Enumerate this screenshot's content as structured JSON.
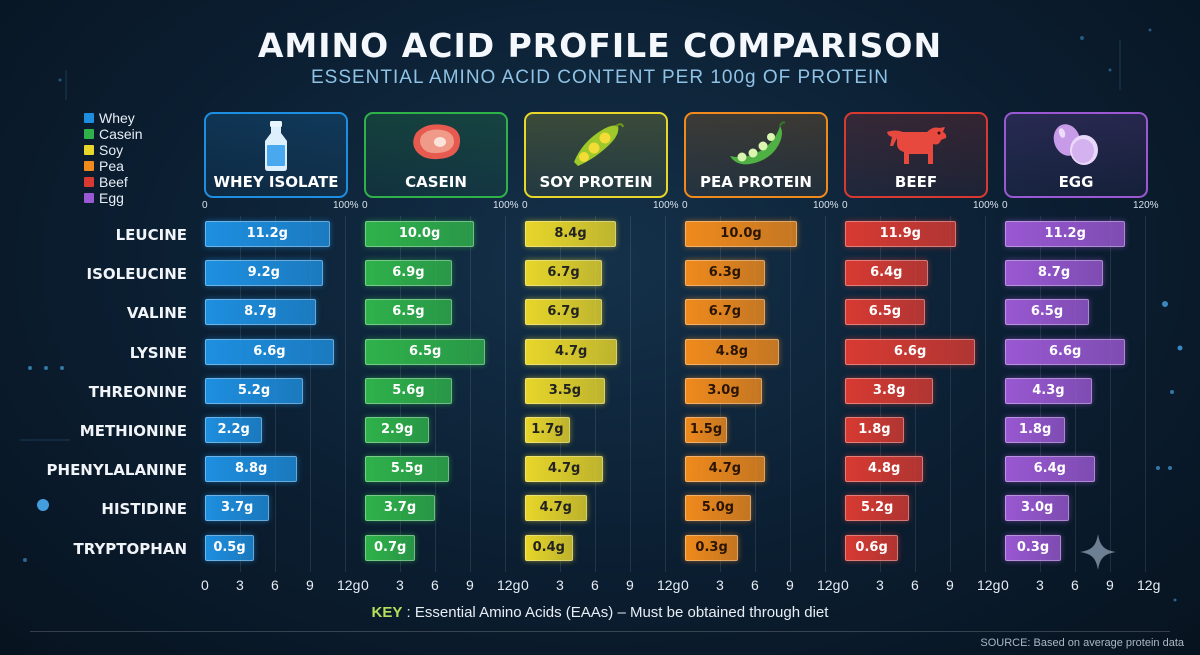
{
  "title": "AMINO ACID PROFILE COMPARISON",
  "subtitle": "ESSENTIAL AMINO ACID CONTENT PER 100g OF PROTEIN",
  "legend": [
    {
      "name": "Whey",
      "color": "#1e8fe0"
    },
    {
      "name": "Casein",
      "color": "#2fb24a"
    },
    {
      "name": "Soy",
      "color": "#e8d62a"
    },
    {
      "name": "Pea",
      "color": "#f08a1c"
    },
    {
      "name": "Beef",
      "color": "#d83a32"
    },
    {
      "name": "Egg",
      "color": "#9a58d2"
    }
  ],
  "key_note": {
    "key": "KEY",
    "text": " : Essential Amino Acids (EAAs) – Must be obtained through diet"
  },
  "source": "SOURCE: Based on average protein data",
  "chart_data": {
    "type": "bar",
    "orientation": "horizontal",
    "categories": [
      "LEUCINE",
      "ISOLEUCINE",
      "VALINE",
      "LYSINE",
      "THREONINE",
      "METHIONINE",
      "PHENYLALANINE",
      "HISTIDINE",
      "TRYPTOPHAN"
    ],
    "x_ticks": [
      "0",
      "3",
      "6",
      "9",
      "12g"
    ],
    "xlim": [
      0,
      12
    ],
    "grid": true,
    "series": [
      {
        "name": "WHEY ISOLATE",
        "icon": "milk-bottle-icon",
        "color": "#1e8fe0",
        "scale_min": "0",
        "scale_max": "100%",
        "values": [
          11.2,
          9.2,
          8.7,
          6.6,
          5.2,
          2.2,
          8.8,
          3.7,
          0.5
        ],
        "labels": [
          "11.2g",
          "9.2g",
          "8.7g",
          "6.6g",
          "5.2g",
          "2.2g",
          "8.8g",
          "3.7g",
          "0.5g"
        ],
        "bar_fraction": [
          0.89,
          0.84,
          0.79,
          0.92,
          0.7,
          0.41,
          0.66,
          0.46,
          0.35
        ]
      },
      {
        "name": "CASEIN",
        "icon": "steak-icon",
        "color": "#2fb24a",
        "scale_min": "0",
        "scale_max": "100%",
        "values": [
          10.0,
          6.9,
          6.5,
          6.5,
          5.6,
          2.9,
          5.5,
          3.7,
          0.7
        ],
        "labels": [
          "10.0g",
          "6.9g",
          "6.5g",
          "6.5g",
          "5.6g",
          "2.9g",
          "5.5g",
          "3.7g",
          "0.7g"
        ],
        "bar_fraction": [
          0.78,
          0.62,
          0.62,
          0.86,
          0.62,
          0.46,
          0.6,
          0.5,
          0.36
        ]
      },
      {
        "name": "SOY PROTEIN",
        "icon": "soybean-icon",
        "color": "#e8d62a",
        "scale_min": "0",
        "scale_max": "100%",
        "values": [
          8.4,
          6.7,
          6.7,
          4.7,
          3.5,
          1.7,
          4.7,
          4.7,
          0.4
        ],
        "labels": [
          "8.4g",
          "6.7g",
          "6.7g",
          "4.7g",
          "3.5g",
          "1.7g",
          "4.7g",
          "4.7g",
          "0.4g"
        ],
        "bar_fraction": [
          0.65,
          0.55,
          0.55,
          0.66,
          0.57,
          0.32,
          0.56,
          0.44,
          0.34
        ]
      },
      {
        "name": "PEA PROTEIN",
        "icon": "pea-pod-icon",
        "color": "#f08a1c",
        "scale_min": "0",
        "scale_max": "100%",
        "values": [
          10.0,
          6.3,
          6.7,
          4.8,
          3.0,
          1.5,
          4.7,
          5.0,
          0.3
        ],
        "labels": [
          "10.0g",
          "6.3g",
          "6.7g",
          "4.8g",
          "3.0g",
          "1.5g",
          "4.7g",
          "5.0g",
          "0.3g"
        ],
        "bar_fraction": [
          0.8,
          0.57,
          0.57,
          0.67,
          0.55,
          0.3,
          0.57,
          0.47,
          0.38
        ]
      },
      {
        "name": "BEEF",
        "icon": "cow-icon",
        "color": "#d83a32",
        "scale_min": "0",
        "scale_max": "100%",
        "values": [
          11.9,
          6.4,
          6.5,
          6.6,
          3.8,
          1.8,
          4.8,
          5.2,
          0.6
        ],
        "labels": [
          "11.9g",
          "6.4g",
          "6.5g",
          "6.6g",
          "3.8g",
          "1.8g",
          "4.8g",
          "5.2g",
          "0.6g"
        ],
        "bar_fraction": [
          0.79,
          0.59,
          0.57,
          0.93,
          0.63,
          0.42,
          0.56,
          0.46,
          0.38
        ]
      },
      {
        "name": "EGG",
        "icon": "eggs-icon",
        "color": "#9a58d2",
        "scale_min": "0",
        "scale_max": "120%",
        "values": [
          11.2,
          8.7,
          6.5,
          6.6,
          4.3,
          1.8,
          6.4,
          3.0,
          0.3
        ],
        "labels": [
          "11.2g",
          "8.7g",
          "6.5g",
          "6.6g",
          "4.3g",
          "1.8g",
          "6.4g",
          "3.0g",
          "0.3g"
        ],
        "bar_fraction": [
          0.86,
          0.7,
          0.6,
          0.86,
          0.62,
          0.43,
          0.64,
          0.46,
          0.4
        ]
      }
    ]
  }
}
